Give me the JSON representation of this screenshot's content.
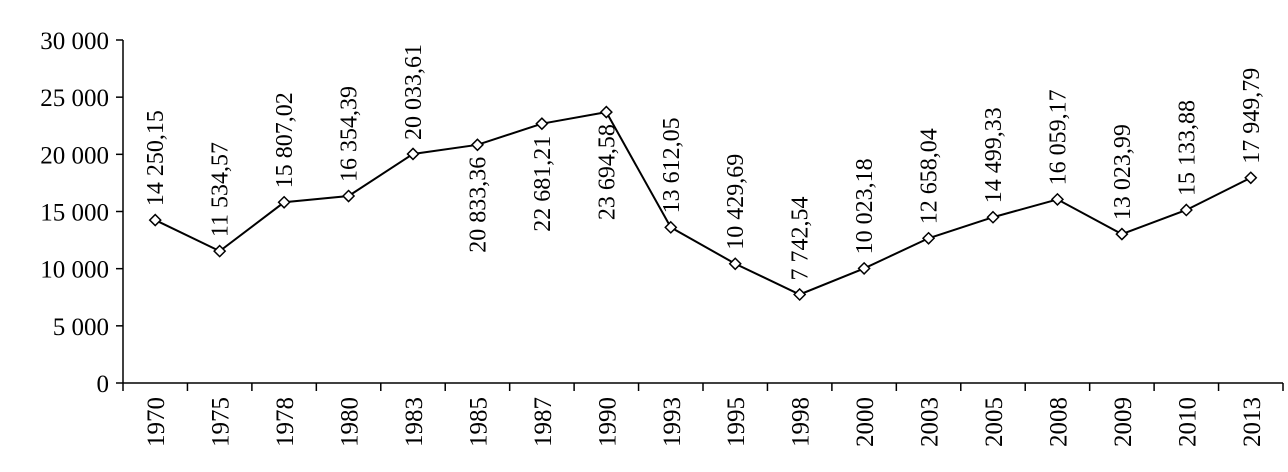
{
  "chart_data": {
    "type": "line",
    "title": "",
    "xlabel": "",
    "ylabel": "",
    "categories": [
      "1970",
      "1975",
      "1978",
      "1980",
      "1983",
      "1985",
      "1987",
      "1990",
      "1993",
      "1995",
      "1998",
      "2000",
      "2003",
      "2005",
      "2008",
      "2009",
      "2010",
      "2013"
    ],
    "values": [
      14250.15,
      11534.57,
      15807.02,
      16354.39,
      20033.61,
      20833.36,
      22681.21,
      23694.58,
      13612.05,
      10429.69,
      7742.54,
      10023.18,
      12658.04,
      14499.33,
      16059.17,
      13023.99,
      15133.88,
      17949.79
    ],
    "data_labels": [
      "14 250,15",
      "11 534,57",
      "15 807,02",
      "16 354,39",
      "20 033,61",
      "20 833,36",
      "22 681,21",
      "23 694,58",
      "13 612,05",
      "10 429,69",
      "7 742,54",
      "10 023,18",
      "12 658,04",
      "14 499,33",
      "16 059,17",
      "13 023,99",
      "15 133,88",
      "17 949,79"
    ],
    "data_label_position": [
      "above",
      "above",
      "above",
      "above",
      "above",
      "below",
      "below",
      "below",
      "above",
      "above",
      "above",
      "above",
      "above",
      "above",
      "above",
      "above",
      "above",
      "above"
    ],
    "ylim": [
      0,
      30000
    ],
    "yticks": [
      0,
      5000,
      10000,
      15000,
      20000,
      25000,
      30000
    ],
    "ytick_labels": [
      "0",
      "5 000",
      "10 000",
      "15 000",
      "20 000",
      "25 000",
      "30 000"
    ],
    "marker": "diamond",
    "grid": false,
    "line_color": "#000000"
  }
}
